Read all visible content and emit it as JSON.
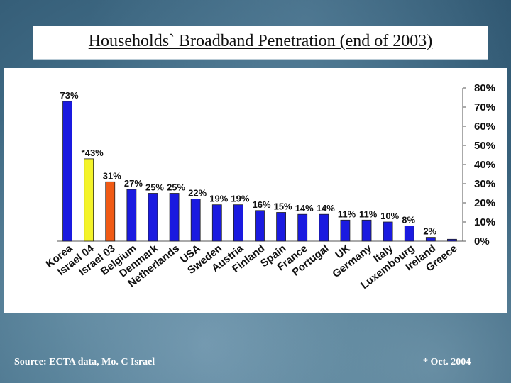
{
  "title": "Households` Broadband Penetration (end of 2003)",
  "footer": {
    "source": "Source: ECTA data, Mo. C Israel",
    "note": "* Oct. 2004"
  },
  "colors": {
    "default_bar": "#1a1ae0",
    "highlight_yellow": "#f4f42a",
    "highlight_orange": "#f05a14"
  },
  "chart_data": {
    "type": "bar",
    "title": "Households` Broadband Penetration (end of 2003)",
    "categories": [
      "Korea",
      "Israel 04",
      "Israel 03",
      "Belgium",
      "Denmark",
      "Netherlands",
      "USA",
      "Sweden",
      "Austria",
      "Finland",
      "Spain",
      "France",
      "Portugal",
      "UK",
      "Germany",
      "Italy",
      "Luxembourg",
      "Ireland",
      "Greece"
    ],
    "values": [
      73,
      43,
      31,
      27,
      25,
      25,
      22,
      19,
      19,
      16,
      15,
      14,
      14,
      11,
      11,
      10,
      8,
      2,
      1
    ],
    "data_labels": [
      "73%",
      "*43%",
      "31%",
      "27%",
      "25%",
      "25%",
      "22%",
      "19%",
      "19%",
      "16%",
      "15%",
      "14%",
      "14%",
      "11%",
      "11%",
      "10%",
      "8%",
      "2%",
      ""
    ],
    "bar_colors": [
      "default",
      "highlight_yellow",
      "highlight_orange",
      "default",
      "default",
      "default",
      "default",
      "default",
      "default",
      "default",
      "default",
      "default",
      "default",
      "default",
      "default",
      "default",
      "default",
      "default",
      "default"
    ],
    "y_ticks": [
      "0%",
      "10%",
      "20%",
      "30%",
      "40%",
      "50%",
      "60%",
      "70%",
      "80%"
    ],
    "ylim": [
      0,
      80
    ],
    "y_axis_side": "right",
    "xlabel": "",
    "ylabel": "",
    "grid": false,
    "legend": "none"
  }
}
